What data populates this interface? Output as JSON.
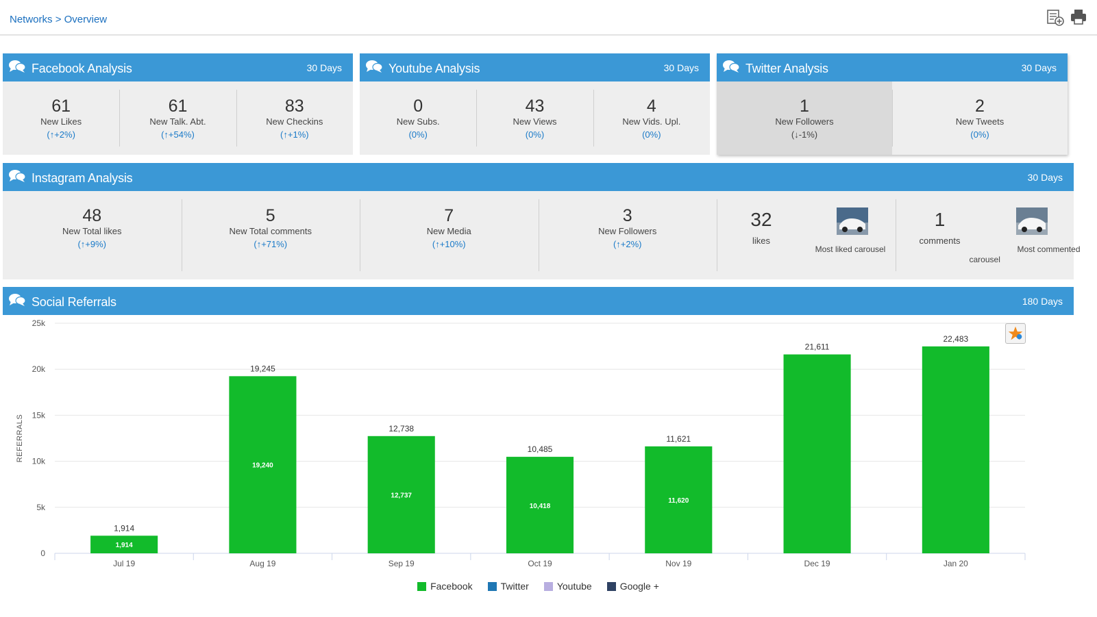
{
  "breadcrumb": {
    "networks": "Networks",
    "separator": ">",
    "overview": "Overview"
  },
  "colors": {
    "header_blue": "#3b98d6",
    "facebook": "#12bb2b",
    "twitter": "#1f77b4",
    "youtube": "#b8aee0",
    "googleplus": "#2f4263",
    "link_blue": "#1a7ac8"
  },
  "facebook": {
    "title": "Facebook Analysis",
    "days": "30 Days",
    "stats": [
      {
        "value": "61",
        "label": "New Likes",
        "change": "(↑+2%)"
      },
      {
        "value": "61",
        "label": "New Talk. Abt.",
        "change": "(↑+54%)"
      },
      {
        "value": "83",
        "label": "New Checkins",
        "change": "(↑+1%)"
      }
    ]
  },
  "youtube": {
    "title": "Youtube Analysis",
    "days": "30 Days",
    "stats": [
      {
        "value": "0",
        "label": "New Subs.",
        "change": "(0%)"
      },
      {
        "value": "43",
        "label": "New Views",
        "change": "(0%)"
      },
      {
        "value": "4",
        "label": "New Vids. Upl.",
        "change": "(0%)"
      }
    ]
  },
  "twitter": {
    "title": "Twitter Analysis",
    "days": "30 Days",
    "stats": [
      {
        "value": "1",
        "label": "New Followers",
        "change": "(↓-1%)"
      },
      {
        "value": "2",
        "label": "New Tweets",
        "change": "(0%)"
      }
    ]
  },
  "instagram": {
    "title": "Instagram Analysis",
    "days": "30 Days",
    "stats": [
      {
        "value": "48",
        "label": "New Total likes",
        "change": "(↑+9%)"
      },
      {
        "value": "5",
        "label": "New Total comments",
        "change": "(↑+71%)"
      },
      {
        "value": "7",
        "label": "New Media",
        "change": "(↑+10%)"
      },
      {
        "value": "3",
        "label": "New Followers",
        "change": "(↑+2%)"
      }
    ],
    "most_liked": {
      "value": "32",
      "label": "likes",
      "caption": "Most liked carousel"
    },
    "most_commented": {
      "value": "1",
      "label": "comments",
      "caption_line1": "Most commented",
      "caption_line2": "carousel"
    }
  },
  "referrals": {
    "title": "Social Referrals",
    "days": "180 Days"
  },
  "chart_data": {
    "type": "bar",
    "title": "",
    "xlabel": "",
    "ylabel": "REFERRALS",
    "ylim": [
      0,
      25000
    ],
    "yticks": [
      {
        "value": 0,
        "label": "0"
      },
      {
        "value": 5000,
        "label": "5k"
      },
      {
        "value": 10000,
        "label": "10k"
      },
      {
        "value": 15000,
        "label": "15k"
      },
      {
        "value": 20000,
        "label": "20k"
      },
      {
        "value": 25000,
        "label": "25k"
      }
    ],
    "categories": [
      "Jul 19",
      "Aug 19",
      "Sep 19",
      "Oct 19",
      "Nov 19",
      "Dec 19",
      "Jan 20"
    ],
    "totals": [
      1914,
      19245,
      12738,
      10485,
      11621,
      21611,
      22483
    ],
    "total_labels": [
      "1,914",
      "19,245",
      "12,738",
      "10,485",
      "11,621",
      "21,611",
      "22,483"
    ],
    "series": [
      {
        "name": "Facebook",
        "values": [
          1914,
          19240,
          12737,
          10418,
          11620,
          null,
          null
        ],
        "inner_labels": [
          "1,914",
          "19,240",
          "12,737",
          "10,418",
          "11,620",
          "",
          ""
        ]
      }
    ],
    "legend": [
      "Facebook",
      "Twitter",
      "Youtube",
      "Google +"
    ],
    "legend_position": "bottom",
    "grid": true
  }
}
